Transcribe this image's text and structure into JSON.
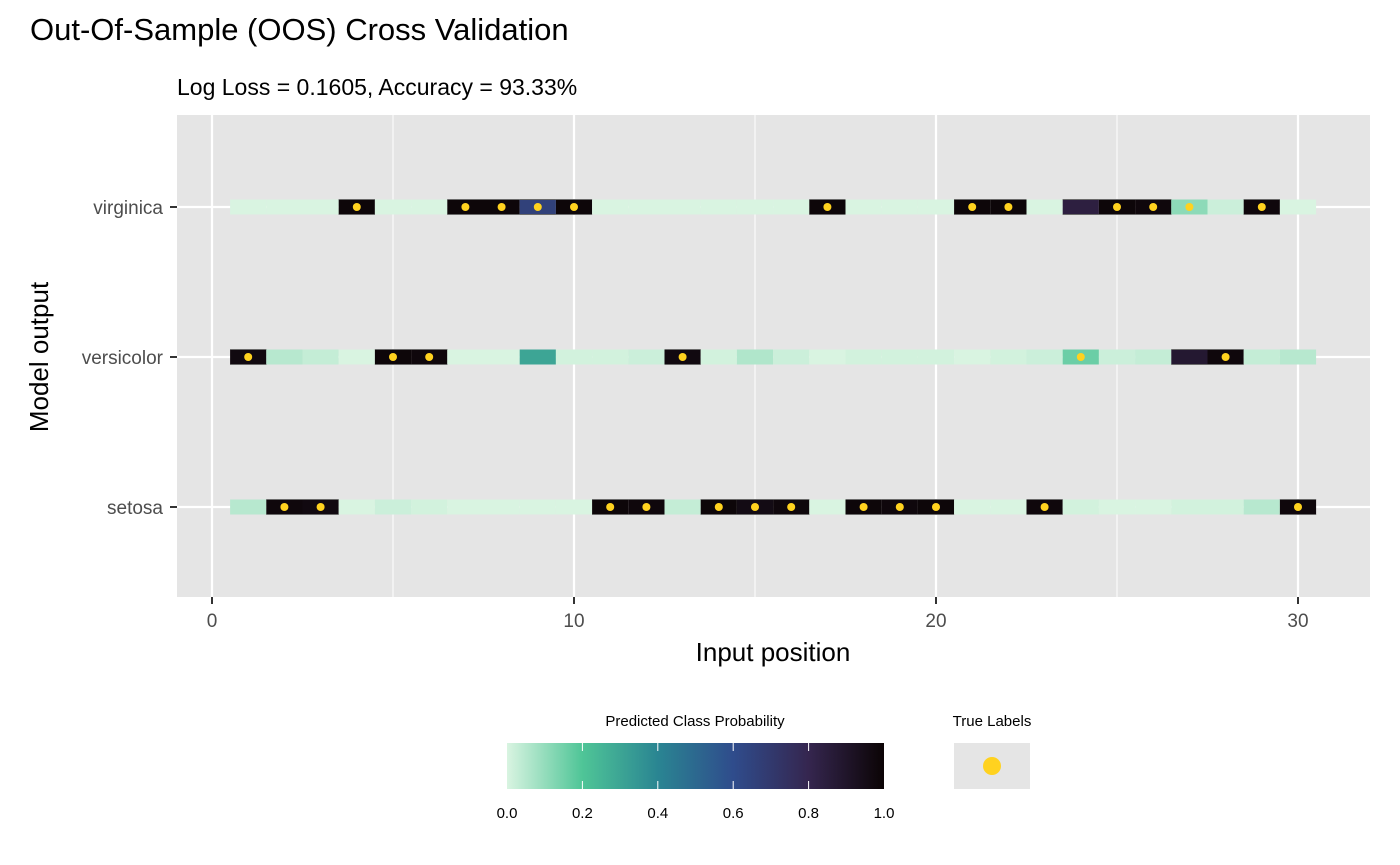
{
  "chart_data": {
    "type": "heatmap",
    "title": "Out-Of-Sample (OOS) Cross Validation",
    "subtitle": "Log Loss = 0.1605, Accuracy = 93.33%",
    "xlabel": "Input position",
    "ylabel": "Model output",
    "xlim": [
      -1,
      32
    ],
    "x_ticks": [
      0,
      10,
      20,
      30
    ],
    "x_tick_labels": [
      "0",
      "10",
      "20",
      "30"
    ],
    "y_categories": [
      "setosa",
      "versicolor",
      "virginica"
    ],
    "grid": true,
    "x": [
      1,
      2,
      3,
      4,
      5,
      6,
      7,
      8,
      9,
      10,
      11,
      12,
      13,
      14,
      15,
      16,
      17,
      18,
      19,
      20,
      21,
      22,
      23,
      24,
      25,
      26,
      27,
      28,
      29,
      30
    ],
    "true_labels": [
      "versicolor",
      "setosa",
      "setosa",
      "virginica",
      "versicolor",
      "versicolor",
      "virginica",
      "virginica",
      "virginica",
      "virginica",
      "setosa",
      "setosa",
      "versicolor",
      "setosa",
      "setosa",
      "setosa",
      "virginica",
      "setosa",
      "setosa",
      "setosa",
      "virginica",
      "virginica",
      "setosa",
      "versicolor",
      "virginica",
      "virginica",
      "virginica",
      "versicolor",
      "virginica",
      "setosa"
    ],
    "probabilities": {
      "setosa": [
        0.05,
        0.98,
        0.97,
        0.0,
        0.02,
        0.01,
        0.0,
        0.0,
        0.0,
        0.0,
        0.99,
        0.98,
        0.03,
        0.99,
        0.96,
        0.98,
        0.0,
        0.99,
        0.98,
        0.99,
        0.0,
        0.0,
        0.98,
        0.01,
        0.0,
        0.0,
        0.01,
        0.01,
        0.05,
        0.98
      ],
      "versicolor": [
        0.97,
        0.05,
        0.03,
        0.0,
        0.99,
        0.98,
        0.0,
        0.0,
        0.3,
        0.01,
        0.01,
        0.02,
        0.97,
        0.01,
        0.06,
        0.02,
        0.0,
        0.01,
        0.01,
        0.01,
        0.0,
        0.01,
        0.02,
        0.16,
        0.02,
        0.03,
        0.88,
        0.98,
        0.03,
        0.05
      ],
      "virginica": [
        0.0,
        0.0,
        0.0,
        0.99,
        0.0,
        0.0,
        0.99,
        0.99,
        0.66,
        0.99,
        0.0,
        0.0,
        0.0,
        0.0,
        0.0,
        0.0,
        0.99,
        0.0,
        0.0,
        0.0,
        0.99,
        0.99,
        0.0,
        0.84,
        0.99,
        0.98,
        0.11,
        0.02,
        0.98,
        0.0
      ]
    },
    "legend": {
      "fill_title": "Predicted Class Probability",
      "fill_ticks": [
        "0.0",
        "0.2",
        "0.4",
        "0.6",
        "0.8",
        "1.0"
      ],
      "fill_tick_values": [
        0,
        0.2,
        0.4,
        0.6,
        0.8,
        1.0
      ],
      "point_title": "True Labels",
      "placement": "bottom"
    },
    "colors": {
      "panel_bg": "#e5e5e5",
      "grid": "#ffffff",
      "true_label_point": "#ffd21f",
      "scale": [
        "#d9f4e1",
        "#4fc597",
        "#2a8592",
        "#2f4c8c",
        "#35264f",
        "#0b0405"
      ]
    }
  }
}
